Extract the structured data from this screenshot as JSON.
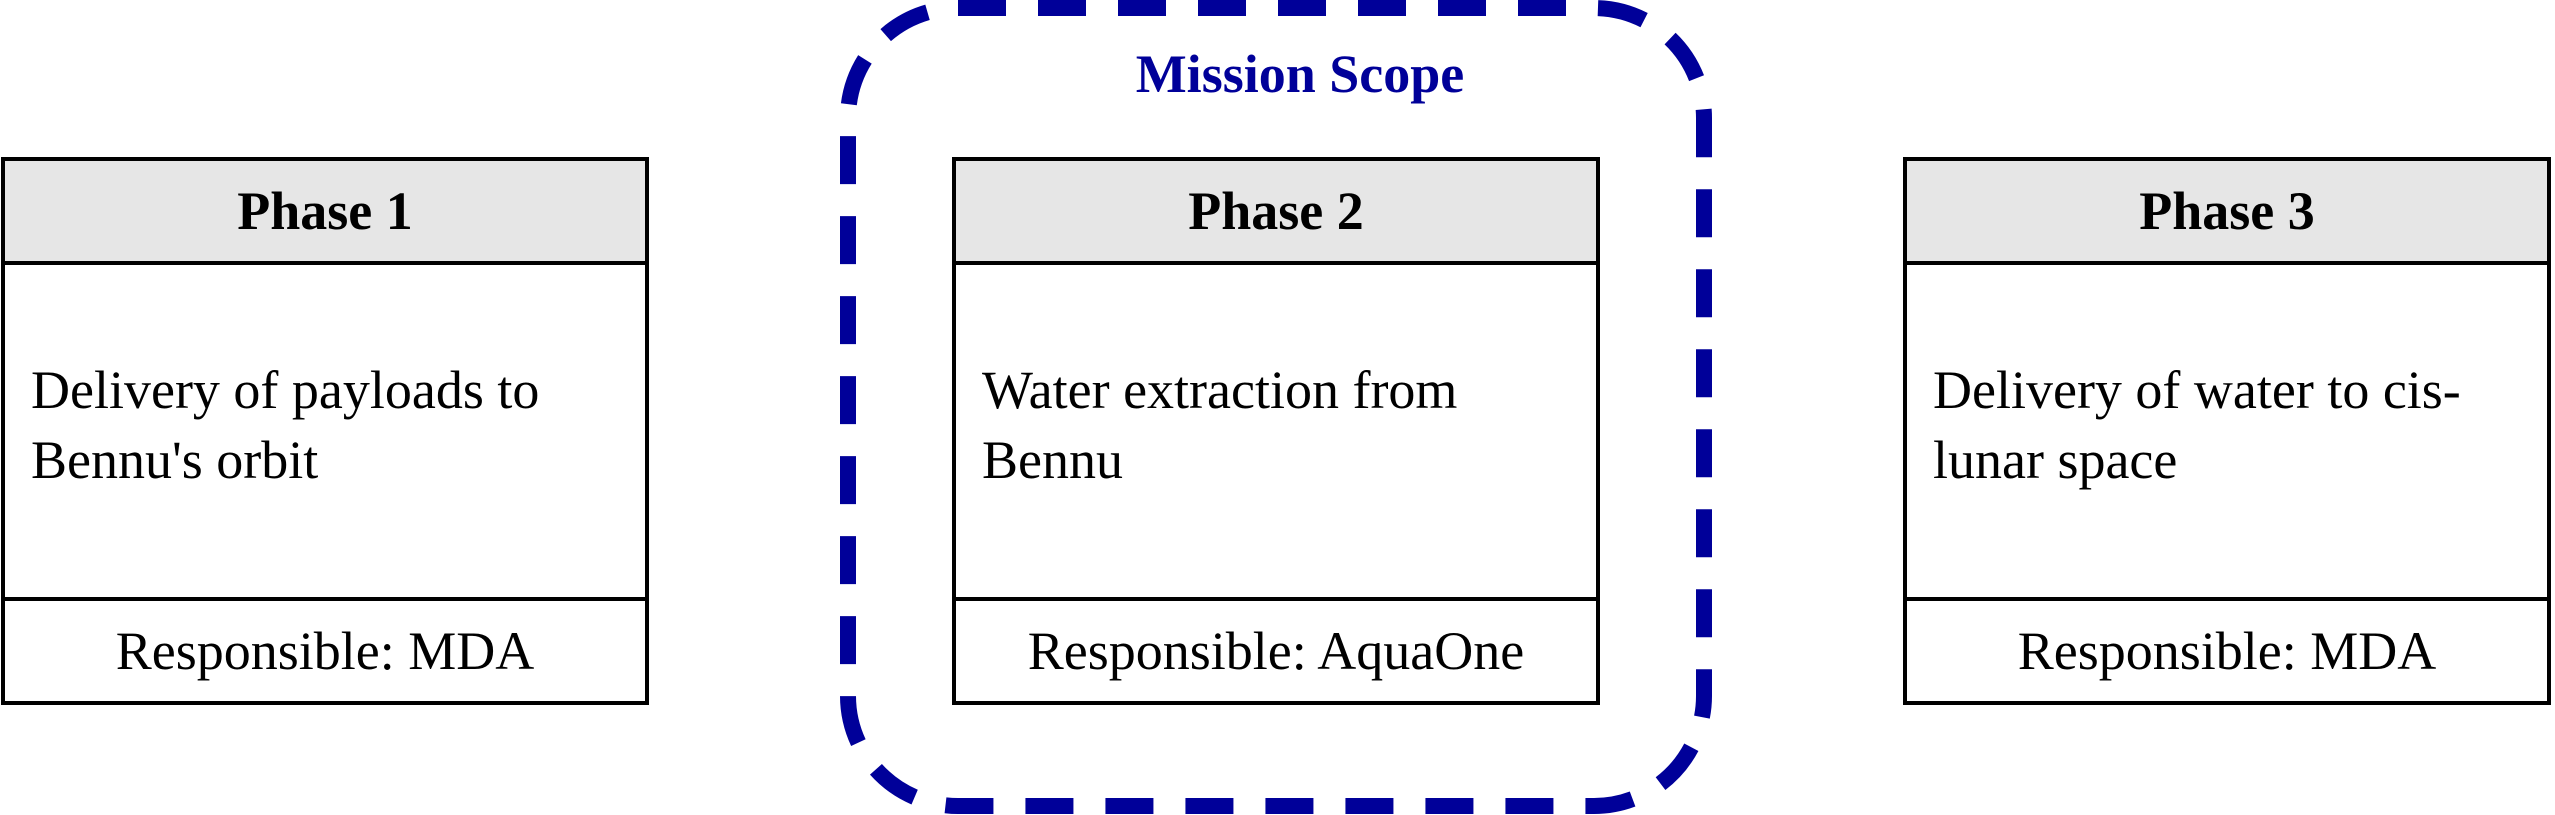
{
  "scope": {
    "label": "Mission Scope",
    "color": "#000099"
  },
  "phases": [
    {
      "title": "Phase 1",
      "description": "Delivery of payloads to Bennu's orbit",
      "responsible": "Responsible: MDA"
    },
    {
      "title": "Phase 2",
      "description": "Water extraction from Bennu",
      "responsible": "Responsible: AquaOne"
    },
    {
      "title": "Phase 3",
      "description": "Delivery of water to cis-lunar space",
      "responsible": "Responsible: MDA"
    }
  ],
  "colors": {
    "header_fill": "#e6e6e6",
    "border": "#000000",
    "background": "#ffffff"
  }
}
